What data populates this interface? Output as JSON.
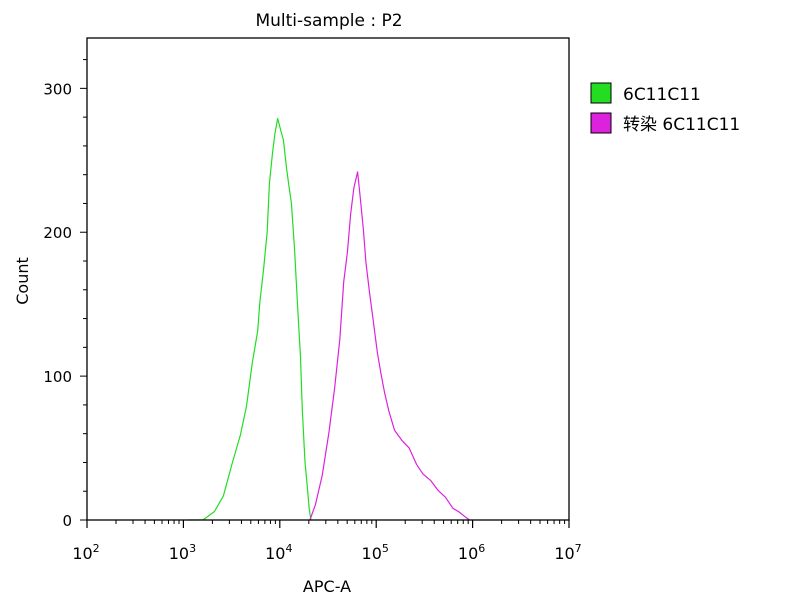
{
  "chart_data": {
    "type": "line",
    "title": "Multi-sample : P2",
    "xlabel": "APC-A",
    "ylabel": "Count",
    "x_scale": "log",
    "xlim": [
      100,
      10000000
    ],
    "ylim": [
      0,
      335
    ],
    "y_ticks": [
      0,
      100,
      200,
      300
    ],
    "x_ticks": [
      {
        "value": 100,
        "base": "10",
        "exp": "2"
      },
      {
        "value": 1000,
        "base": "10",
        "exp": "3"
      },
      {
        "value": 10000,
        "base": "10",
        "exp": "4"
      },
      {
        "value": 100000,
        "base": "10",
        "exp": "5"
      },
      {
        "value": 1000000,
        "base": "10",
        "exp": "6"
      },
      {
        "value": 10000000,
        "base": "10",
        "exp": "7"
      }
    ],
    "legend_position": "outside-right-top",
    "grid": false,
    "series": [
      {
        "name": "6C11C11",
        "color": "#22dd22",
        "points": [
          [
            1100,
            0
          ],
          [
            1600,
            2
          ],
          [
            2100,
            6
          ],
          [
            2600,
            18
          ],
          [
            3200,
            40
          ],
          [
            3900,
            60
          ],
          [
            4500,
            80
          ],
          [
            5200,
            110
          ],
          [
            5900,
            130
          ],
          [
            6200,
            150
          ],
          [
            6800,
            175
          ],
          [
            7400,
            200
          ],
          [
            7800,
            232
          ],
          [
            8400,
            255
          ],
          [
            8900,
            268
          ],
          [
            9500,
            280
          ],
          [
            10300,
            272
          ],
          [
            10900,
            265
          ],
          [
            11800,
            245
          ],
          [
            12500,
            232
          ],
          [
            13200,
            222
          ],
          [
            14200,
            190
          ],
          [
            15300,
            150
          ],
          [
            16400,
            112
          ],
          [
            17100,
            75
          ],
          [
            18200,
            40
          ],
          [
            19500,
            18
          ],
          [
            20200,
            6
          ],
          [
            21000,
            0
          ]
        ]
      },
      {
        "name": "转染 6C11C11",
        "color": "#dd22dd",
        "points": [
          [
            20500,
            0
          ],
          [
            23400,
            10
          ],
          [
            27500,
            30
          ],
          [
            32400,
            60
          ],
          [
            37000,
            90
          ],
          [
            41900,
            125
          ],
          [
            46000,
            165
          ],
          [
            50300,
            185
          ],
          [
            54400,
            212
          ],
          [
            58700,
            232
          ],
          [
            64100,
            242
          ],
          [
            68400,
            225
          ],
          [
            73700,
            203
          ],
          [
            78100,
            180
          ],
          [
            85200,
            160
          ],
          [
            92900,
            140
          ],
          [
            102800,
            115
          ],
          [
            112200,
            100
          ],
          [
            122500,
            88
          ],
          [
            135600,
            75
          ],
          [
            155100,
            62
          ],
          [
            184600,
            55
          ],
          [
            220000,
            48
          ],
          [
            261900,
            40
          ],
          [
            305300,
            34
          ],
          [
            366900,
            28
          ],
          [
            441100,
            22
          ],
          [
            525100,
            16
          ],
          [
            625000,
            10
          ],
          [
            722100,
            6
          ],
          [
            834200,
            3
          ],
          [
            928200,
            0
          ]
        ]
      }
    ]
  }
}
